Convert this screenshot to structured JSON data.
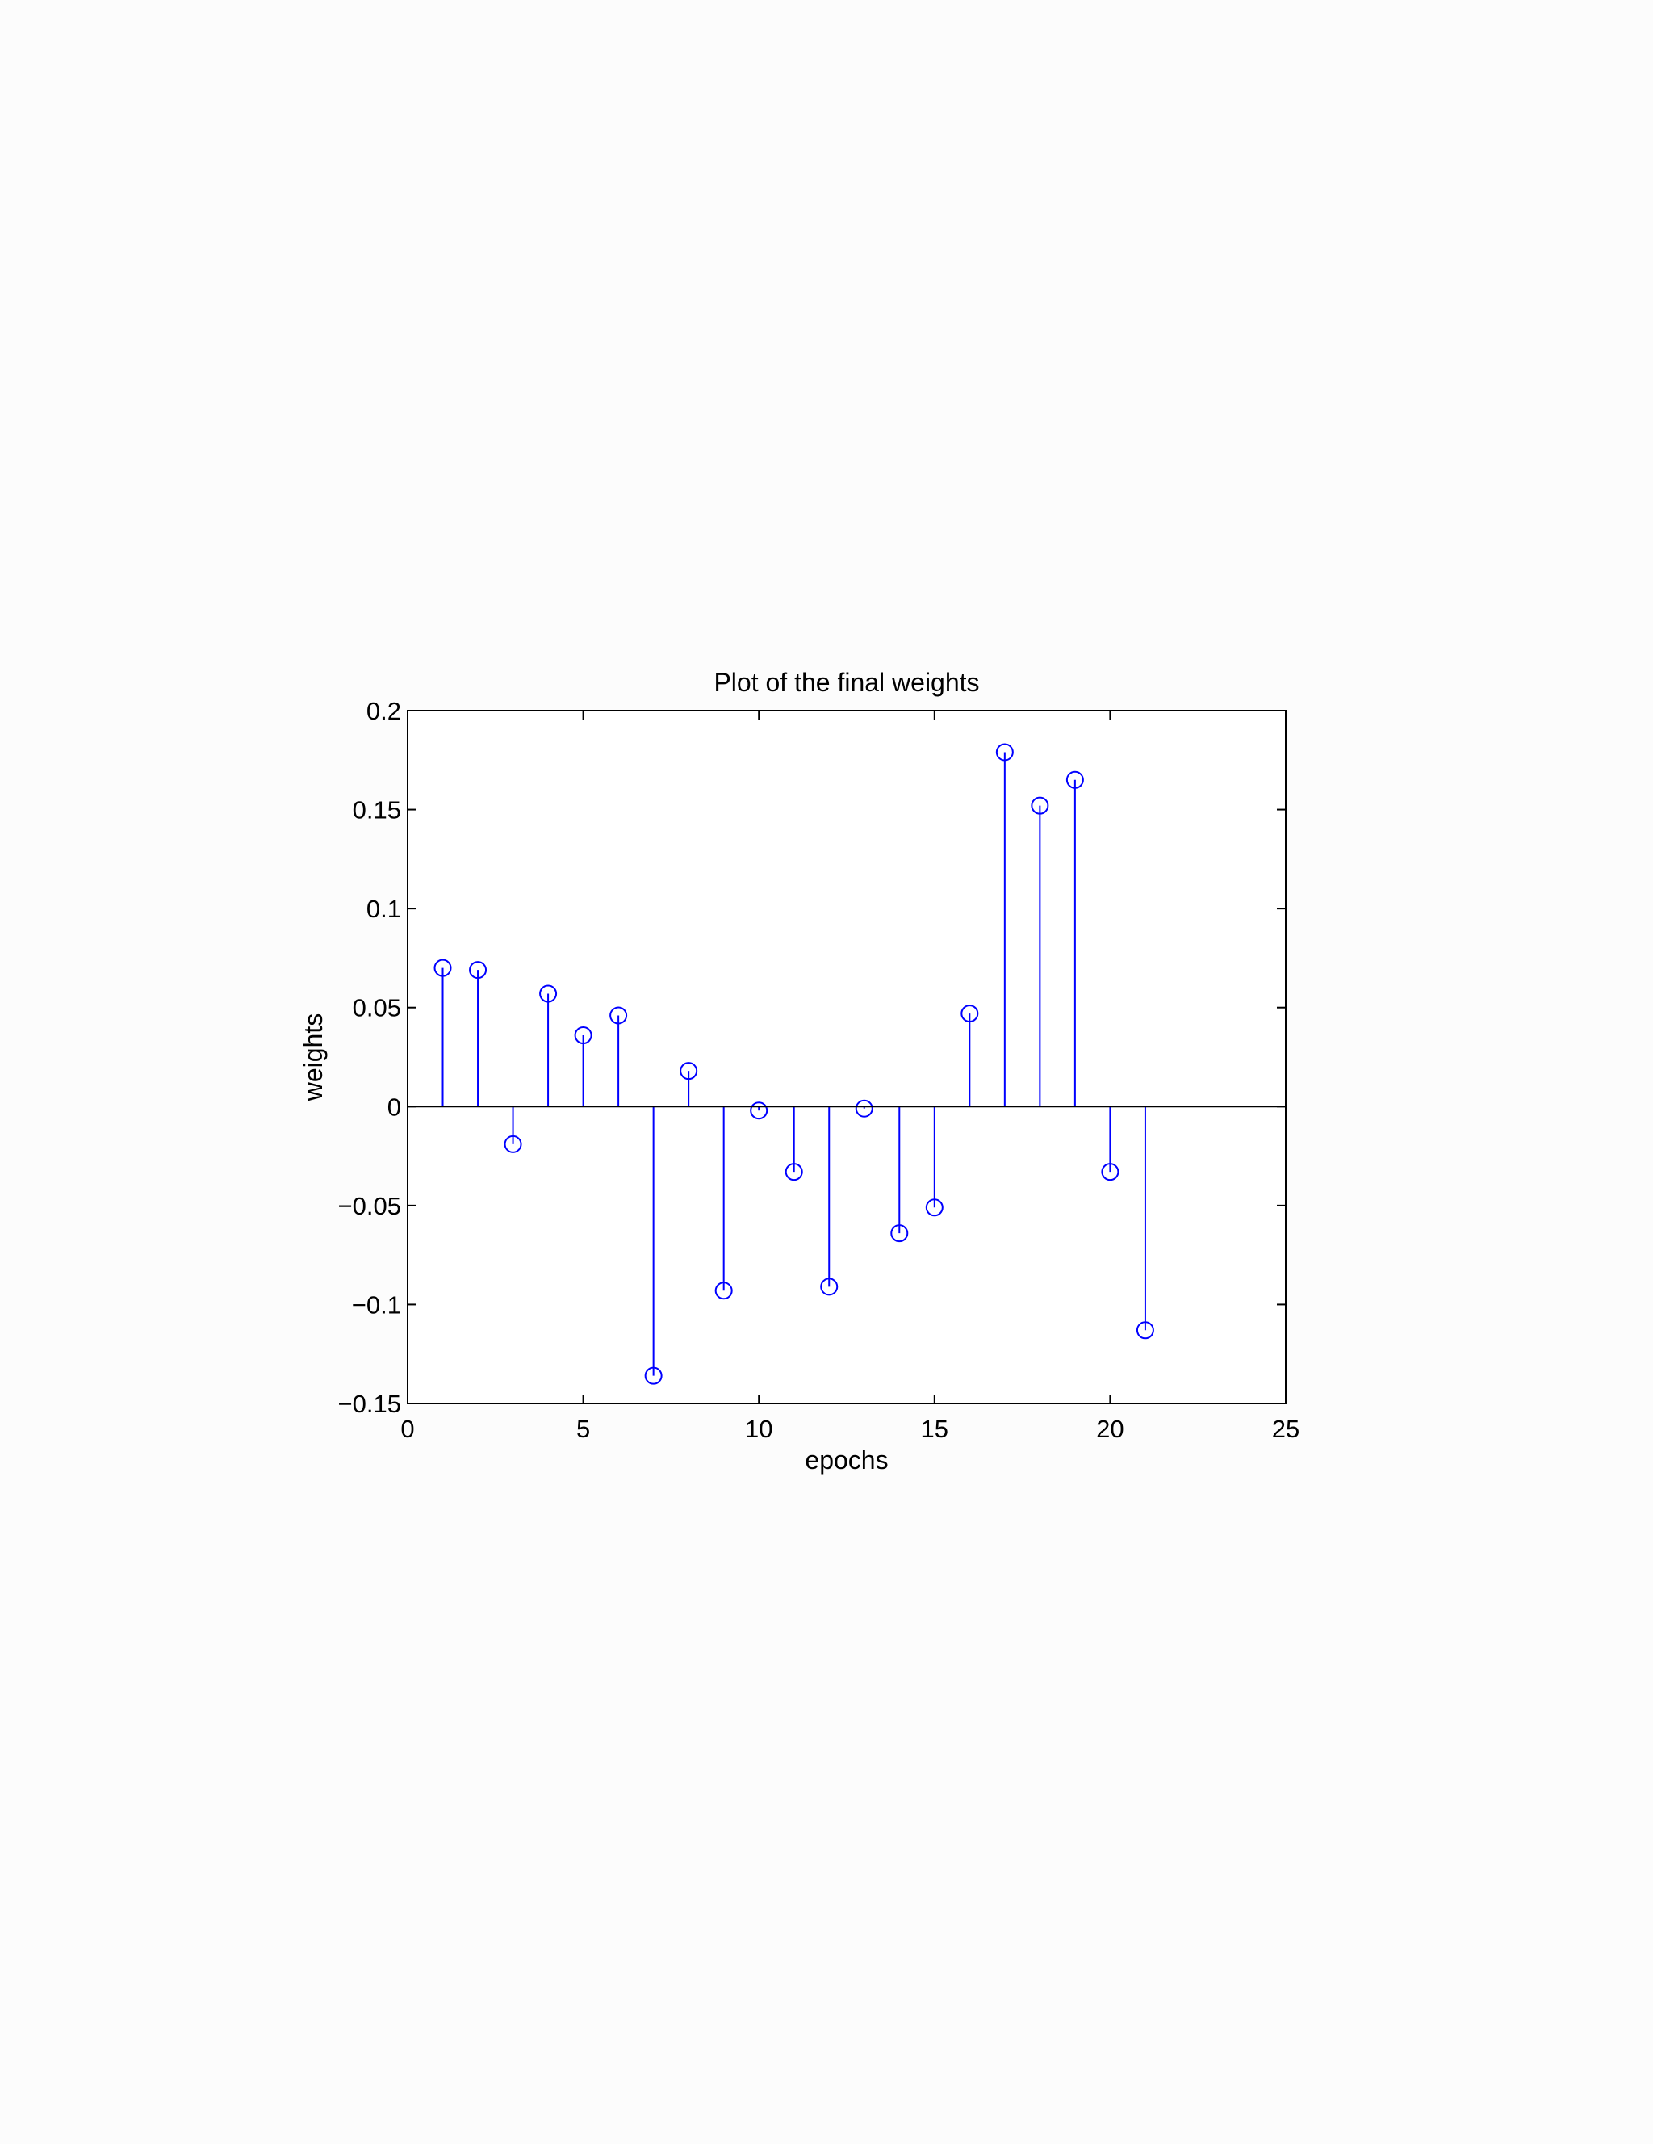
{
  "chart_data": {
    "type": "stem",
    "title": "Plot of the final weights",
    "xlabel": "epochs",
    "ylabel": "weights",
    "xlim": [
      0,
      25
    ],
    "ylim": [
      -0.15,
      0.2
    ],
    "xticks": [
      0,
      5,
      10,
      15,
      20,
      25
    ],
    "yticks": [
      -0.15,
      -0.1,
      -0.05,
      0,
      0.05,
      0.1,
      0.15,
      0.2
    ],
    "xtick_labels": [
      "0",
      "5",
      "10",
      "15",
      "20",
      "25"
    ],
    "ytick_labels": [
      "−0.15",
      "−0.1",
      "−0.05",
      "0",
      "0.05",
      "0.1",
      "0.15",
      "0.2"
    ],
    "grid": false,
    "baseline": 0,
    "series": [
      {
        "marker": "circle",
        "color": "#0000ff",
        "x": [
          1,
          2,
          3,
          4,
          5,
          6,
          7,
          8,
          9,
          10,
          11,
          12,
          13,
          14,
          15,
          16,
          17,
          18,
          19,
          20,
          21
        ],
        "values": [
          0.07,
          0.069,
          -0.019,
          0.057,
          0.036,
          0.046,
          -0.136,
          0.018,
          -0.093,
          -0.002,
          -0.033,
          -0.091,
          -0.001,
          -0.064,
          -0.051,
          0.047,
          0.179,
          0.152,
          0.165,
          -0.033,
          -0.113
        ]
      }
    ]
  }
}
